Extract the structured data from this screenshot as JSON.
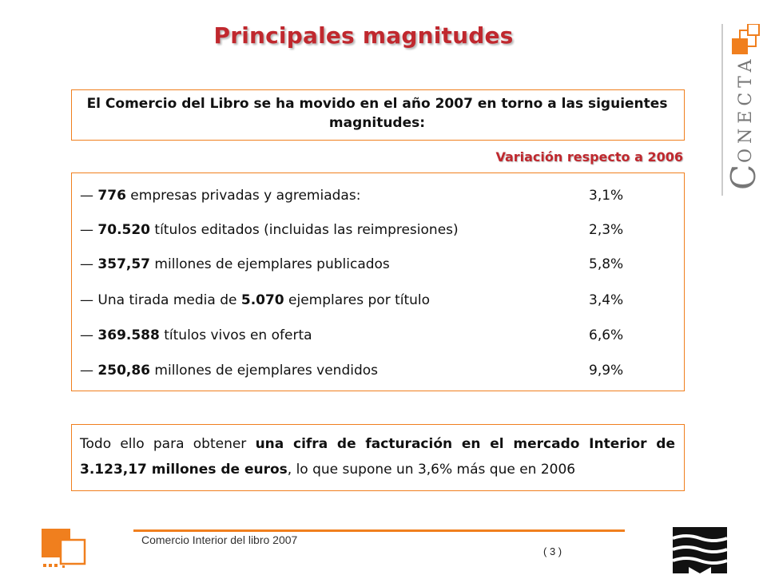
{
  "slide": {
    "title": "Principales magnitudes",
    "intro": "El Comercio del Libro se ha movido en el año 2007 en torno a las siguientes magnitudes:",
    "variation_label": "Variación respecto a 2006",
    "magnitudes": [
      {
        "dash": "— ",
        "value": "776",
        "text": " empresas privadas y agremiadas:",
        "pct": "3,1%"
      },
      {
        "dash": "— ",
        "value": "70.520",
        "text": " títulos editados (incluidas las reimpresiones)",
        "pct": "2,3%"
      },
      {
        "dash": "— ",
        "value": "357,57",
        "text": " millones de ejemplares publicados",
        "pct": "5,8%"
      },
      {
        "dash": "— Una tirada media de ",
        "value": "5.070",
        "text": " ejemplares por título",
        "pct": "3,4%"
      },
      {
        "dash": "— ",
        "value": "369.588",
        "text": " títulos vivos en oferta",
        "pct": "6,6%"
      },
      {
        "dash": "— ",
        "value": "250,86",
        "text": " millones de ejemplares vendidos",
        "pct": "9,9%"
      }
    ],
    "summary": {
      "part1": "Todo ello para obtener ",
      "bold": "una cifra de facturación en el mercado Interior de 3.123,17 millones de euros",
      "part2": ", lo que supone un 3,6% más que en 2006"
    }
  },
  "logo": {
    "brand": "ONECTA",
    "initial": "C"
  },
  "footer": {
    "text": "Comercio Interior del libro 2007",
    "page": "( 3 )"
  },
  "colors": {
    "accent": "#f07f1e",
    "title": "#c0282e"
  }
}
